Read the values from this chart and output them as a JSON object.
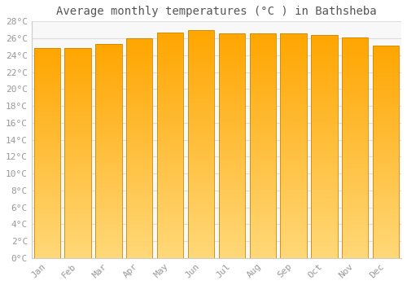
{
  "months": [
    "Jan",
    "Feb",
    "Mar",
    "Apr",
    "May",
    "Jun",
    "Jul",
    "Aug",
    "Sep",
    "Oct",
    "Nov",
    "Dec"
  ],
  "temperatures": [
    24.8,
    24.8,
    25.3,
    26.0,
    26.7,
    27.0,
    26.6,
    26.6,
    26.6,
    26.4,
    26.1,
    25.1
  ],
  "title": "Average monthly temperatures (°C ) in Bathsheba",
  "bar_color_top": "#FFA500",
  "bar_color_bottom": "#FFD878",
  "bar_edge_color": "#CC8800",
  "ylim": [
    0,
    28
  ],
  "ytick_step": 2,
  "bg_color": "#FFFFFF",
  "plot_bg_color": "#F8F8F8",
  "grid_color": "#DDDDDD",
  "title_fontsize": 10,
  "tick_fontsize": 8,
  "tick_label_color": "#999999",
  "bar_width": 0.85
}
